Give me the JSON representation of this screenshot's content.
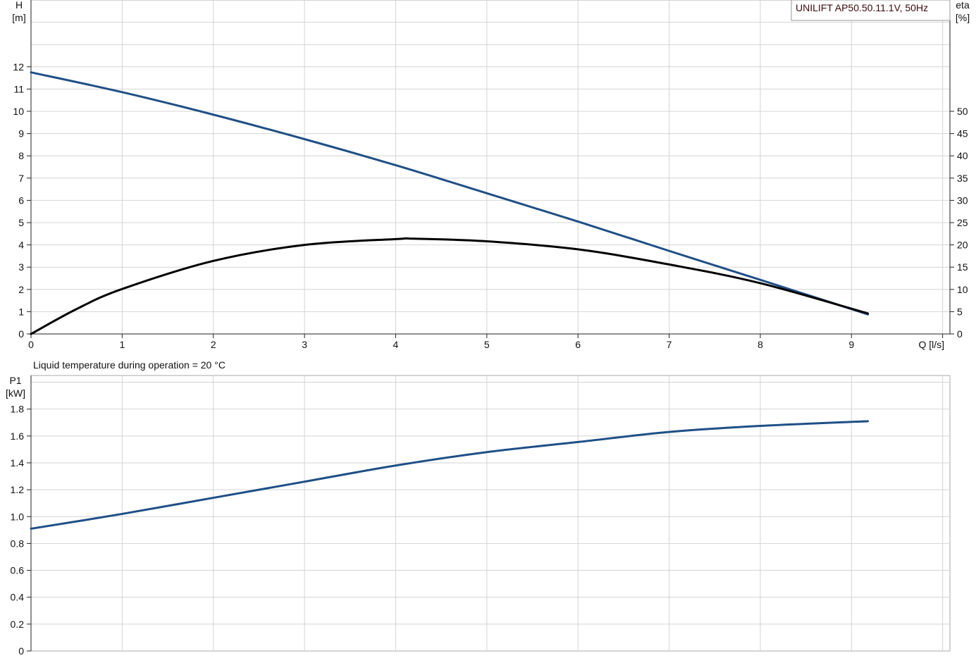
{
  "chart_data": [
    {
      "type": "line",
      "legend": "UNILIFT AP50.50.11.1V, 50Hz",
      "legend_placement": "top-right",
      "xlabel": "Q [l/s]",
      "ylabel_line1": "H",
      "ylabel_line2": "[m]",
      "y2label_line1": "eta",
      "y2label_line2": "[%]",
      "xlim": [
        0,
        10.08
      ],
      "ylim": [
        0,
        15
      ],
      "y2lim": [
        0,
        75
      ],
      "x_ticks": [
        0,
        1,
        2,
        3,
        4,
        5,
        6,
        7,
        8,
        9
      ],
      "y_ticks": [
        0,
        1,
        2,
        3,
        4,
        5,
        6,
        7,
        8,
        9,
        10,
        11,
        12
      ],
      "y2_ticks": [
        0,
        5,
        10,
        15,
        20,
        25,
        30,
        35,
        40,
        45,
        50
      ],
      "grid": true,
      "series": [
        {
          "id": "H",
          "axis": "left",
          "color": "#1f4f86",
          "x": [
            0,
            1,
            2,
            3,
            4,
            5,
            6,
            7,
            8,
            9.18
          ],
          "y": [
            11.75,
            10.86,
            9.85,
            8.75,
            7.58,
            6.32,
            5.05,
            3.73,
            2.43,
            0.88
          ]
        },
        {
          "id": "eta",
          "axis": "right",
          "color": "#000000",
          "x": [
            0,
            0.5,
            1,
            2,
            3,
            4,
            4.2,
            5,
            6,
            7,
            8,
            9.18
          ],
          "y": [
            0,
            5.6,
            10.1,
            16.4,
            20.0,
            21.3,
            21.4,
            20.8,
            19.0,
            15.6,
            11.4,
            4.6
          ]
        }
      ]
    },
    {
      "type": "line",
      "title": "Liquid temperature during operation =  20 °C",
      "ylabel_line1": "P1",
      "ylabel_line2": "[kW]",
      "xlim": [
        0,
        10.08
      ],
      "ylim": [
        0,
        2.05
      ],
      "y_ticks": [
        "0",
        "0.2",
        "0.4",
        "0.6",
        "0.8",
        "1.0",
        "1.2",
        "1.4",
        "1.6",
        "1.8"
      ],
      "grid": true,
      "series": [
        {
          "id": "P1",
          "color": "#1f4f86",
          "x": [
            0,
            1,
            2,
            3,
            4,
            5,
            6,
            7,
            8,
            9.18
          ],
          "y": [
            0.91,
            1.02,
            1.14,
            1.26,
            1.38,
            1.48,
            1.555,
            1.63,
            1.675,
            1.71
          ]
        }
      ]
    }
  ]
}
